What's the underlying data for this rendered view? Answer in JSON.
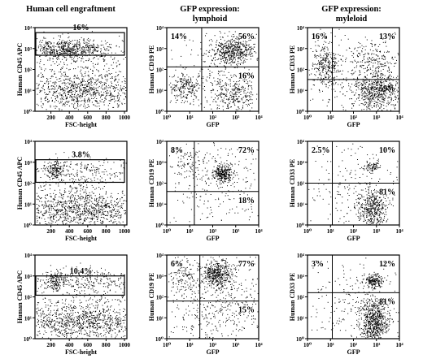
{
  "headers": [
    "Human cell engraftment",
    "GFP expression:\nlymphoid",
    "GFP expression:\nmyleloid"
  ],
  "chart_data": [
    {
      "type": "scatter",
      "panel": "row1-col1",
      "ylabel": "Human CD45 APC",
      "xlabel": "FSC-height",
      "x_ticks": [
        "200",
        "400",
        "600",
        "800",
        "1000"
      ],
      "y_ticks": [
        "10^0",
        "10^1",
        "10^2",
        "10^3",
        "10^4"
      ],
      "gate_label": "16%",
      "gate_percent": 16
    },
    {
      "type": "scatter",
      "panel": "row1-col2",
      "ylabel": "Human CD19 PE",
      "xlabel": "GFP",
      "x_ticks": [
        "10^0",
        "10^1",
        "10^2",
        "10^3",
        "10^4"
      ],
      "y_ticks": [
        "10^0",
        "10^1",
        "10^2",
        "10^3",
        "10^4"
      ],
      "quadrants": {
        "upper_left": "14%",
        "upper_right": "56%",
        "lower_right": "16%"
      }
    },
    {
      "type": "scatter",
      "panel": "row1-col3",
      "ylabel": "Human CD33 PE",
      "xlabel": "GFP",
      "x_ticks": [
        "10^0",
        "10^1",
        "10^2",
        "10^3",
        "10^4"
      ],
      "y_ticks": [
        "10^0",
        "10^1",
        "10^2",
        "10^3",
        "10^4"
      ],
      "quadrants": {
        "upper_left": "16%",
        "upper_right": "13%",
        "lower_right": "59%"
      }
    },
    {
      "type": "scatter",
      "panel": "row2-col1",
      "ylabel": "Human CD45 APC",
      "xlabel": "FSC-height",
      "x_ticks": [
        "200",
        "400",
        "600",
        "800",
        "1000"
      ],
      "y_ticks": [
        "10^0",
        "10^1",
        "10^2",
        "10^3",
        "10^4"
      ],
      "gate_label": "3.8%",
      "gate_percent": 3.8
    },
    {
      "type": "scatter",
      "panel": "row2-col2",
      "ylabel": "Human CD19 PE",
      "xlabel": "GFP",
      "x_ticks": [
        "10^0",
        "10^1",
        "10^2",
        "10^3",
        "10^4"
      ],
      "y_ticks": [
        "10^0",
        "10^1",
        "10^2",
        "10^3",
        "10^4"
      ],
      "quadrants": {
        "upper_left": "8%",
        "upper_right": "72%",
        "lower_right": "18%"
      }
    },
    {
      "type": "scatter",
      "panel": "row2-col3",
      "ylabel": "Human CD33 PE",
      "xlabel": "GFP",
      "x_ticks": [
        "10^0",
        "10^1",
        "10^2",
        "10^3",
        "10^4"
      ],
      "y_ticks": [
        "10^0",
        "10^1",
        "10^2",
        "10^3",
        "10^4"
      ],
      "quadrants": {
        "upper_left": "2.5%",
        "upper_right": "10%",
        "lower_right": "81%"
      }
    },
    {
      "type": "scatter",
      "panel": "row3-col1",
      "ylabel": "Human CD45 APC",
      "xlabel": "FSC-height",
      "x_ticks": [
        "200",
        "400",
        "600",
        "800",
        "1000"
      ],
      "y_ticks": [
        "10^0",
        "10^1",
        "10^2",
        "10^3",
        "10^4"
      ],
      "gate_label": "10.4%",
      "gate_percent": 10.4
    },
    {
      "type": "scatter",
      "panel": "row3-col2",
      "ylabel": "Human CD19 PE",
      "xlabel": "GFP",
      "x_ticks": [
        "10^0",
        "10^1",
        "10^2",
        "10^3",
        "10^4"
      ],
      "y_ticks": [
        "10^0",
        "10^1",
        "10^2",
        "10^3",
        "10^4"
      ],
      "quadrants": {
        "upper_left": "6%",
        "upper_right": "77%",
        "lower_right": "15%"
      }
    },
    {
      "type": "scatter",
      "panel": "row3-col3",
      "ylabel": "Human CD33 PE",
      "xlabel": "GFP",
      "x_ticks": [
        "10^0",
        "10^1",
        "10^2",
        "10^3",
        "10^4"
      ],
      "y_ticks": [
        "10^0",
        "10^1",
        "10^2",
        "10^3",
        "10^4"
      ],
      "quadrants": {
        "upper_left": "3%",
        "upper_right": "12%",
        "lower_right": "81%"
      }
    }
  ]
}
